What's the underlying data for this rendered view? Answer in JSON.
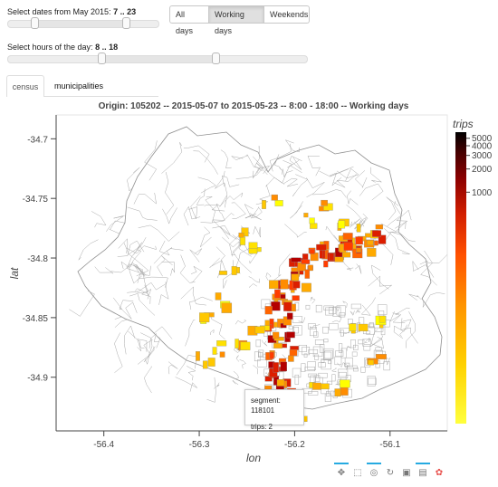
{
  "date_slider": {
    "label": "Select dates from May 2015:",
    "value": "7 .. 23"
  },
  "hour_slider": {
    "label": "Select hours of the day:",
    "value": "8 .. 18"
  },
  "day_filter": {
    "buttons": [
      {
        "label": "All days",
        "active": false
      },
      {
        "label": "Working days",
        "active": true
      },
      {
        "label": "Weekends",
        "active": false
      }
    ]
  },
  "tabs": [
    {
      "label": "census",
      "active": true
    },
    {
      "label": "municipalities",
      "active": false
    }
  ],
  "chart_data": {
    "type": "heatmap",
    "title": "Origin: 105202 -- 2015-05-07 to 2015-05-23 -- 8:00 - 18:00 -- Working days",
    "xlabel": "lon",
    "ylabel": "lat",
    "x_ticks": [
      "-56.4",
      "-56.3",
      "-56.2",
      "-56.1"
    ],
    "x_tick_values": [
      -56.4,
      -56.3,
      -56.2,
      -56.1
    ],
    "y_ticks": [
      "-34.7",
      "-34.75",
      "-34.8",
      "-34.85",
      "-34.9"
    ],
    "y_tick_values": [
      -34.7,
      -34.75,
      -34.8,
      -34.85,
      -34.9
    ],
    "xlim": [
      -56.45,
      -56.04
    ],
    "ylim": [
      -34.945,
      -34.68
    ],
    "colorbar": {
      "title": "trips",
      "tick_labels": [
        "5000",
        "4000",
        "3000",
        "2000",
        "1000"
      ],
      "tick_values": [
        5000,
        4000,
        3000,
        2000,
        1000
      ],
      "scale": "log",
      "range": [
        1,
        6000
      ],
      "colors": [
        "#ffff00",
        "#ffc800",
        "#ff9600",
        "#ff5a00",
        "#e62800",
        "#b40000",
        "#780000",
        "#3c0000",
        "#000000"
      ]
    },
    "colors": {
      "low": "#ffff00",
      "mid": "#ff8c00",
      "high": "#b40000",
      "boundary": "#9a9a9a"
    }
  },
  "tooltip": {
    "segment_label": "segment: 118101",
    "trips_label": "trips: 2"
  },
  "toolbar": {
    "tools": [
      {
        "icon": "pan-icon",
        "glyph": "✥",
        "active": true
      },
      {
        "icon": "box-zoom-icon",
        "glyph": "⬚",
        "active": false
      },
      {
        "icon": "wheel-zoom-icon",
        "glyph": "◎",
        "active": true
      },
      {
        "icon": "reset-icon",
        "glyph": "↻",
        "active": false
      },
      {
        "icon": "save-icon",
        "glyph": "▣",
        "active": false
      },
      {
        "icon": "hover-icon",
        "glyph": "▤",
        "active": true
      },
      {
        "icon": "bokeh-logo-icon",
        "glyph": "✿",
        "active": false
      }
    ]
  }
}
